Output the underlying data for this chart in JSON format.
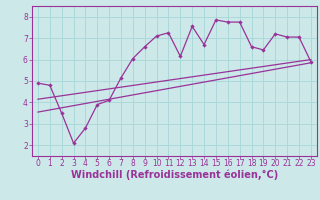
{
  "xlabel": "Windchill (Refroidissement éolien,°C)",
  "ylabel": "",
  "bg_color": "#cce8e8",
  "line_color": "#993399",
  "grid_color": "#aad8d8",
  "xlim": [
    -0.5,
    23.5
  ],
  "ylim": [
    1.5,
    8.5
  ],
  "xticks": [
    0,
    1,
    2,
    3,
    4,
    5,
    6,
    7,
    8,
    9,
    10,
    11,
    12,
    13,
    14,
    15,
    16,
    17,
    18,
    19,
    20,
    21,
    22,
    23
  ],
  "yticks": [
    2,
    3,
    4,
    5,
    6,
    7,
    8
  ],
  "line1_x": [
    0,
    1,
    2,
    3,
    4,
    5,
    6,
    7,
    8,
    9,
    10,
    11,
    12,
    13,
    14,
    15,
    16,
    17,
    18,
    19,
    20,
    21,
    22,
    23
  ],
  "line1_y": [
    4.9,
    4.8,
    3.5,
    2.1,
    2.8,
    3.9,
    4.1,
    5.15,
    6.05,
    6.6,
    7.1,
    7.25,
    6.15,
    7.55,
    6.7,
    7.85,
    7.75,
    7.75,
    6.6,
    6.45,
    7.2,
    7.05,
    7.05,
    5.9
  ],
  "line2_x": [
    0,
    23
  ],
  "line2_y": [
    4.15,
    6.0
  ],
  "line3_x": [
    0,
    23
  ],
  "line3_y": [
    3.55,
    5.85
  ],
  "tick_fontsize": 5.5,
  "label_fontsize": 7.0
}
